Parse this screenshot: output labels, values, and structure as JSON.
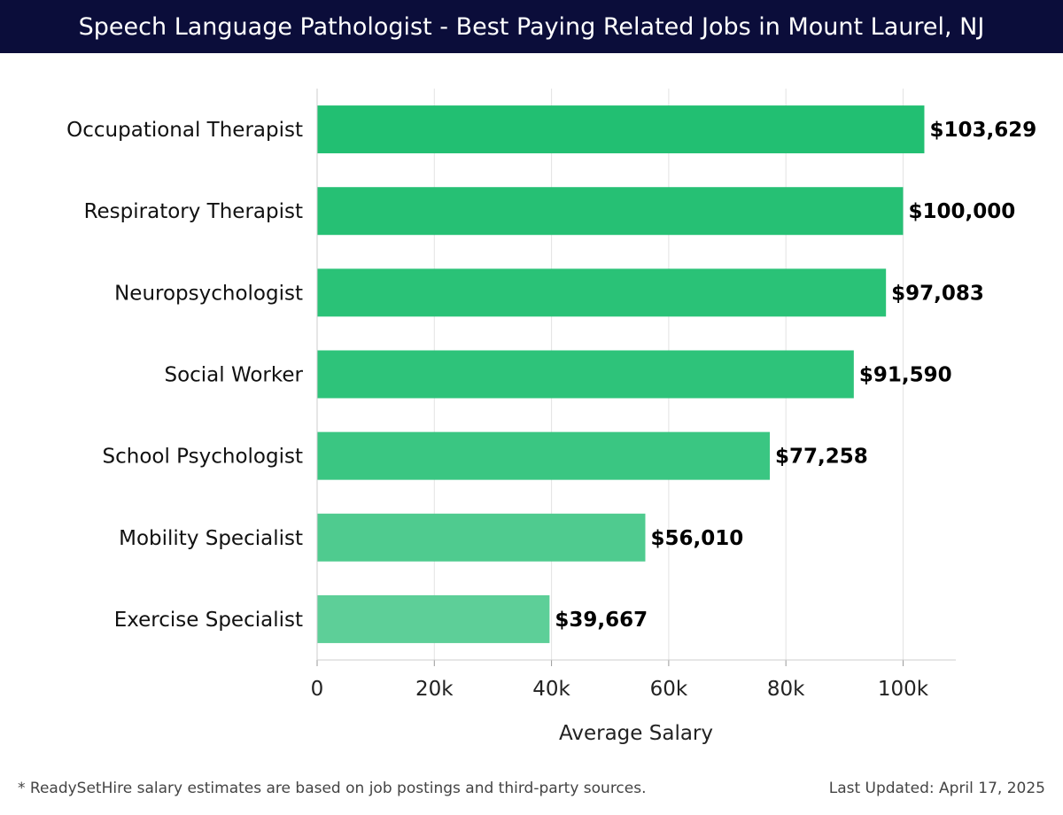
{
  "header": {
    "title": "Speech Language Pathologist - Best Paying Related Jobs in Mount Laurel, NJ"
  },
  "footer": {
    "note": "* ReadySetHire salary estimates are based on job postings and third-party sources.",
    "updated": "Last Updated: April 17, 2025"
  },
  "chart_data": {
    "type": "bar",
    "orientation": "horizontal",
    "title": "Speech Language Pathologist - Best Paying Related Jobs in Mount Laurel, NJ",
    "xlabel": "Average Salary",
    "ylabel": "",
    "xlim": [
      0,
      109000
    ],
    "xticks": [
      0,
      20000,
      40000,
      60000,
      80000,
      100000
    ],
    "xtick_labels": [
      "0",
      "20k",
      "40k",
      "60k",
      "80k",
      "100k"
    ],
    "grid": "vertical",
    "categories": [
      "Occupational Therapist",
      "Respiratory Therapist",
      "Neuropsychologist",
      "Social Worker",
      "School Psychologist",
      "Mobility Specialist",
      "Exercise Specialist"
    ],
    "values": [
      103629,
      100000,
      97083,
      91590,
      77258,
      56010,
      39667
    ],
    "value_labels": [
      "$103,629",
      "$100,000",
      "$97,083",
      "$91,590",
      "$77,258",
      "$56,010",
      "$39,667"
    ],
    "colors": [
      "#22bf72",
      "#26c074",
      "#2ac277",
      "#2ec37a",
      "#3ac682",
      "#4fcb8f",
      "#5dcf98"
    ]
  }
}
